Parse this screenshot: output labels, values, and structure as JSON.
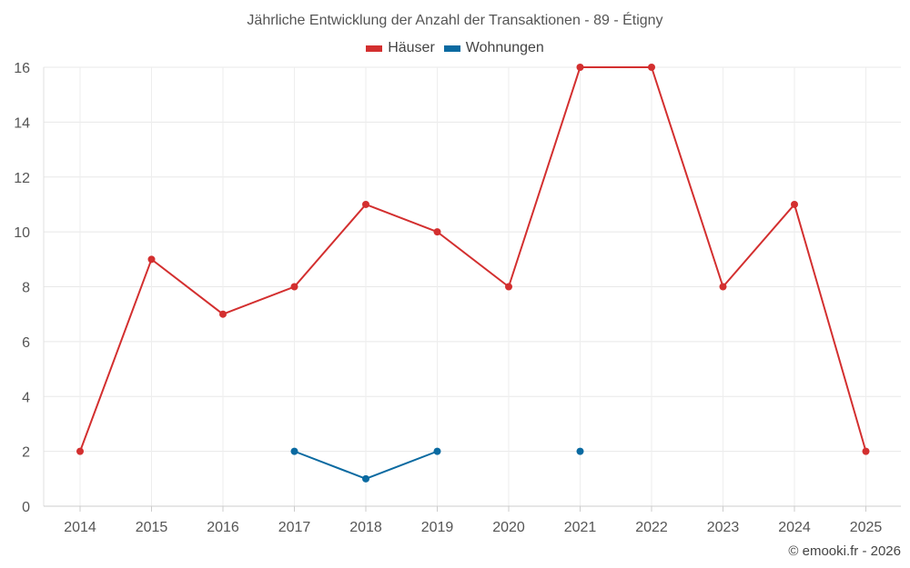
{
  "chart_data": {
    "type": "line",
    "title": "Jährliche Entwicklung der Anzahl der Transaktionen - 89 - Étigny",
    "xlabel": "",
    "ylabel": "",
    "categories": [
      "2014",
      "2015",
      "2016",
      "2017",
      "2018",
      "2019",
      "2020",
      "2021",
      "2022",
      "2023",
      "2024",
      "2025"
    ],
    "ylim": [
      0,
      16
    ],
    "yticks": [
      "0",
      "2",
      "4",
      "6",
      "8",
      "10",
      "12",
      "14",
      "16"
    ],
    "grid": true,
    "legend_position": "top-center",
    "series": [
      {
        "name": "Häuser",
        "color": "#d32f2f",
        "values": [
          2,
          9,
          7,
          8,
          11,
          10,
          8,
          16,
          16,
          8,
          11,
          2
        ]
      },
      {
        "name": "Wohnungen",
        "color": "#0a6aa1",
        "values": [
          null,
          null,
          null,
          2,
          1,
          2,
          null,
          2,
          null,
          null,
          null,
          null
        ]
      }
    ]
  },
  "credit": "© emooki.fr - 2026"
}
